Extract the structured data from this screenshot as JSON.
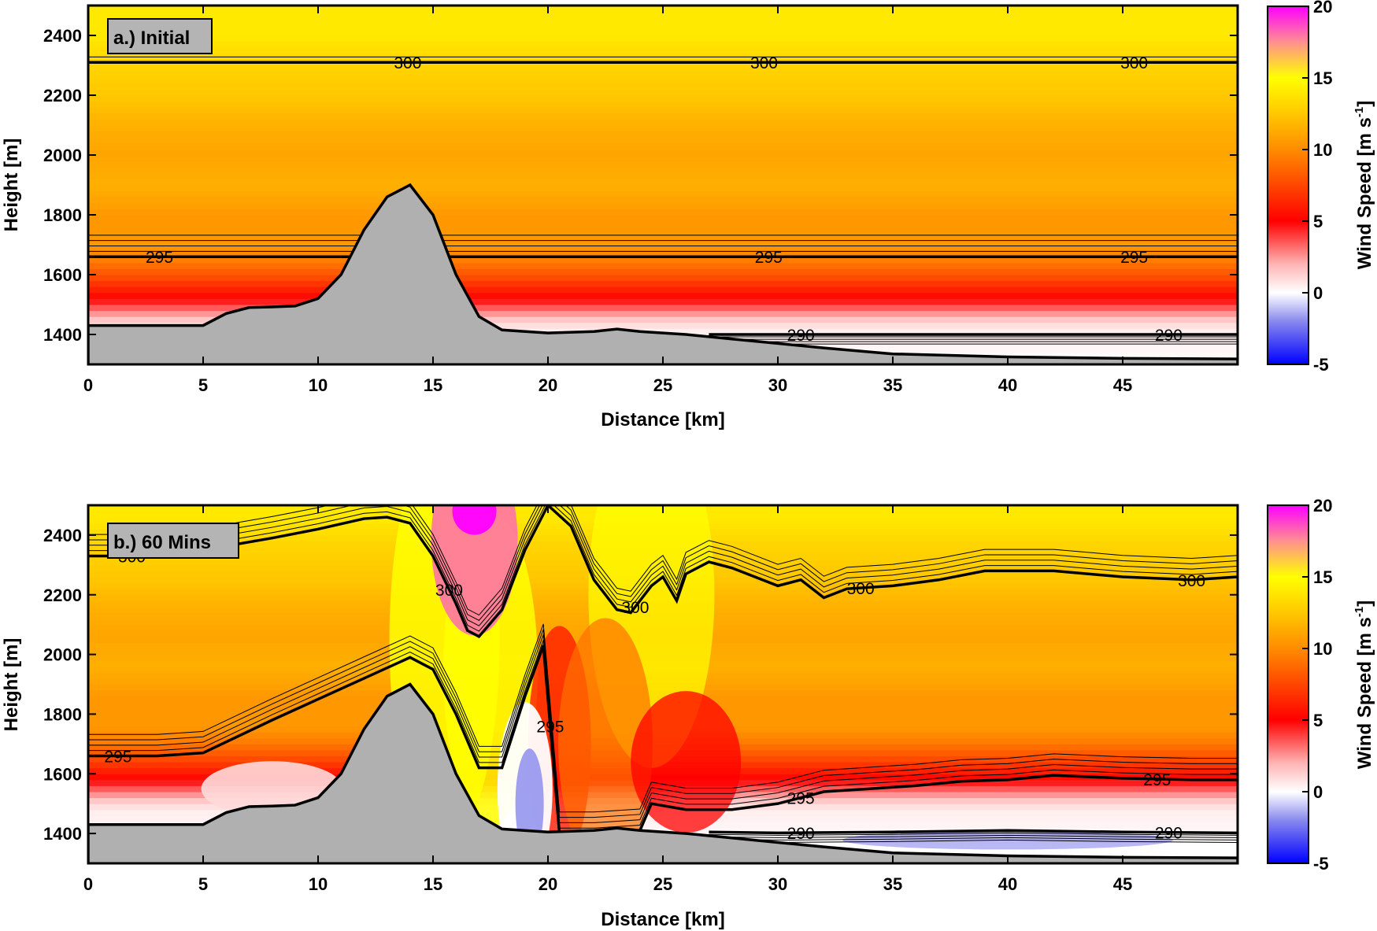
{
  "chart_data": [
    {
      "type": "heatmap",
      "panel_label": "a.) Initial",
      "xlabel": "Distance [km]",
      "ylabel": "Height [m]",
      "xlim": [
        0,
        50
      ],
      "ylim": [
        1300,
        2500
      ],
      "xticks": [
        0,
        5,
        10,
        15,
        20,
        25,
        30,
        35,
        40,
        45
      ],
      "yticks": [
        1400,
        1600,
        1800,
        2000,
        2200,
        2400
      ],
      "colorbar": {
        "label": "Wind Speed [m s",
        "label_sup": "-1",
        "label_end": "]",
        "range": [
          -5,
          20
        ],
        "ticks": [
          -5,
          0,
          5,
          10,
          15,
          20
        ]
      },
      "terrain": {
        "x": [
          0,
          5,
          6,
          7,
          8,
          9,
          10,
          11,
          12,
          13,
          14,
          15,
          16,
          17,
          18,
          20,
          22,
          23,
          24,
          26,
          28,
          30,
          32,
          35,
          40,
          45,
          50
        ],
        "y": [
          1430,
          1430,
          1470,
          1490,
          1492,
          1495,
          1520,
          1600,
          1750,
          1860,
          1900,
          1800,
          1600,
          1460,
          1415,
          1405,
          1410,
          1418,
          1410,
          1400,
          1385,
          1370,
          1355,
          1335,
          1325,
          1320,
          1318
        ]
      },
      "wind_speed_profile": {
        "height": [
          1300,
          1420,
          1450,
          1480,
          1520,
          1560,
          1600,
          1650,
          1700,
          1800,
          1900,
          2000,
          2100,
          2150,
          2200,
          2300,
          2400,
          2500
        ],
        "speed": [
          0,
          0.5,
          1.5,
          3,
          5,
          6.5,
          8,
          9.5,
          10.5,
          10.5,
          11.5,
          11,
          11.5,
          12,
          12.5,
          13,
          14,
          14
        ]
      },
      "contours": [
        {
          "value": "300",
          "height": 2310
        },
        {
          "value": "295",
          "height": 1660
        },
        {
          "value": "290",
          "height": 1400
        }
      ],
      "contour_label_x": {
        "300": [
          13.9,
          29.4,
          45.5
        ],
        "295": [
          3.1,
          29.6,
          45.5
        ],
        "290": [
          31.0,
          47.0
        ]
      }
    },
    {
      "type": "heatmap",
      "panel_label": "b.) 60 Mins",
      "xlabel": "Distance [km]",
      "ylabel": "Height [m]",
      "xlim": [
        0,
        50
      ],
      "ylim": [
        1300,
        2500
      ],
      "xticks": [
        0,
        5,
        10,
        15,
        20,
        25,
        30,
        35,
        40,
        45
      ],
      "yticks": [
        1400,
        1600,
        1800,
        2000,
        2200,
        2400
      ],
      "colorbar": {
        "label": "Wind Speed [m s",
        "label_sup": "-1",
        "label_end": "]",
        "range": [
          -5,
          20
        ],
        "ticks": [
          -5,
          0,
          5,
          10,
          15,
          20
        ]
      },
      "terrain": {
        "x": [
          0,
          5,
          6,
          7,
          8,
          9,
          10,
          11,
          12,
          13,
          14,
          15,
          16,
          17,
          18,
          20,
          22,
          23,
          24,
          26,
          28,
          30,
          32,
          35,
          40,
          45,
          50
        ],
        "y": [
          1430,
          1430,
          1470,
          1490,
          1492,
          1495,
          1520,
          1600,
          1750,
          1860,
          1900,
          1800,
          1600,
          1460,
          1415,
          1405,
          1410,
          1418,
          1410,
          1400,
          1385,
          1370,
          1355,
          1335,
          1325,
          1320,
          1318
        ]
      },
      "contours": [
        {
          "value": "300",
          "x": [
            0,
            2,
            5,
            8,
            10,
            12,
            13,
            14,
            15,
            16,
            16.5,
            17,
            18,
            19,
            20,
            21,
            22,
            23,
            23.6,
            24.5,
            25,
            25.6,
            26,
            27,
            28,
            29,
            30,
            31,
            32,
            33,
            35,
            37,
            39,
            42,
            45,
            48,
            50
          ],
          "y": [
            2330,
            2330,
            2350,
            2390,
            2420,
            2455,
            2460,
            2440,
            2330,
            2170,
            2080,
            2060,
            2150,
            2350,
            2500,
            2430,
            2250,
            2150,
            2140,
            2230,
            2260,
            2180,
            2270,
            2310,
            2290,
            2260,
            2230,
            2250,
            2190,
            2220,
            2230,
            2250,
            2280,
            2280,
            2260,
            2250,
            2260
          ]
        },
        {
          "value": "295",
          "x": [
            0,
            3,
            5,
            8,
            10,
            12,
            14,
            15,
            16,
            17,
            18,
            19,
            19.8,
            20.5,
            22,
            24,
            24.5,
            26,
            28,
            30,
            32,
            34,
            36,
            38,
            40,
            42,
            45,
            48,
            50
          ],
          "y": [
            1660,
            1660,
            1670,
            1780,
            1850,
            1920,
            1990,
            1950,
            1800,
            1620,
            1620,
            1860,
            2030,
            1400,
            1400,
            1410,
            1500,
            1480,
            1480,
            1500,
            1540,
            1550,
            1560,
            1575,
            1580,
            1595,
            1585,
            1580,
            1580
          ]
        },
        {
          "value": "290",
          "x": [
            27,
            30,
            35,
            40,
            45,
            50
          ],
          "y": [
            1405,
            1402,
            1405,
            1410,
            1405,
            1402
          ]
        }
      ],
      "contour_label_x": {
        "300": [
          1.9,
          15.7,
          23.8,
          33.6,
          48.0
        ],
        "295": [
          1.3,
          20.1,
          31.0,
          46.5
        ],
        "290": [
          31.0,
          47.0
        ]
      },
      "features": [
        {
          "name": "jet-max",
          "x": 16.8,
          "y": 2480,
          "speed": 20
        },
        {
          "name": "lee-wave-strong-winds",
          "x": 18.0,
          "y": 2000,
          "speed": 16
        },
        {
          "name": "reversed-flow-rotor",
          "x": 19.0,
          "y": 1550,
          "speed": -2
        },
        {
          "name": "reversed-flow-surface",
          "x": 40.0,
          "y": 1375,
          "speed": -2
        }
      ]
    }
  ]
}
